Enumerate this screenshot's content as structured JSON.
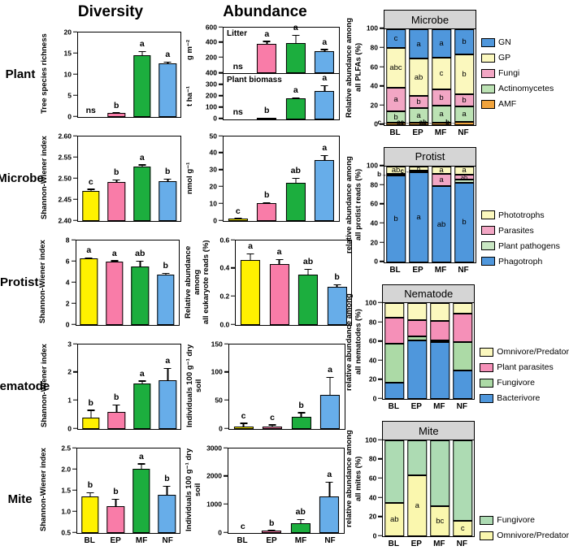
{
  "figure": {
    "col_headers": {
      "diversity": "Diversity",
      "abundance": "Abundance"
    },
    "row_labels": [
      "Plant",
      "Microbe",
      "Protist",
      "Nematode",
      "Mite"
    ]
  },
  "groups": {
    "categories": [
      "BL",
      "EP",
      "MF",
      "NF"
    ],
    "colors": [
      "#FFF100",
      "#F97CA8",
      "#1CAE3E",
      "#67ADE9"
    ]
  },
  "chart_data": [
    {
      "id": "plant-diversity",
      "type": "bar",
      "ylabel": "Tree species richness",
      "ylim": [
        0,
        20
      ],
      "yticks": [
        0,
        5,
        10,
        15,
        20
      ],
      "decimals": 0,
      "categories": [
        "BL",
        "EP",
        "MF",
        "NF"
      ],
      "values": [
        0,
        1.0,
        14.7,
        12.7
      ],
      "errors": [
        0,
        0.12,
        0.9,
        0.4
      ],
      "letters": [
        "ns",
        "b",
        "a",
        "a"
      ],
      "show_x": false
    },
    {
      "id": "plant-litter",
      "type": "bar",
      "inner_title": "Litter",
      "ylabel": "g m⁻²",
      "ylim": [
        0,
        600
      ],
      "yticks": [
        0,
        200,
        400,
        600
      ],
      "decimals": 0,
      "categories": [
        "BL",
        "EP",
        "MF",
        "NF"
      ],
      "values": [
        0,
        390,
        400,
        290
      ],
      "errors": [
        0,
        35,
        105,
        30
      ],
      "letters": [
        "ns",
        "a",
        "a",
        "a"
      ],
      "show_x": false
    },
    {
      "id": "plant-biomass",
      "type": "bar",
      "inner_title": "Plant biomass",
      "ylabel": "t ha⁻¹",
      "ylim": [
        0,
        400
      ],
      "yticks": [
        0,
        100,
        200,
        300,
        400
      ],
      "decimals": 0,
      "categories": [
        "BL",
        "EP",
        "MF",
        "NF"
      ],
      "values": [
        0,
        8,
        180,
        245
      ],
      "errors": [
        0,
        3,
        10,
        55
      ],
      "letters": [
        "ns",
        "b",
        "a",
        "a"
      ],
      "show_x": false
    },
    {
      "id": "microbe-diversity",
      "type": "bar",
      "ylabel": "Shannon-Wiener index",
      "ylim": [
        2.4,
        2.6
      ],
      "yticks": [
        2.4,
        2.45,
        2.5,
        2.55,
        2.6
      ],
      "decimals": 2,
      "categories": [
        "BL",
        "EP",
        "MF",
        "NF"
      ],
      "values": [
        2.472,
        2.493,
        2.528,
        2.494
      ],
      "errors": [
        0.004,
        0.006,
        0.006,
        0.007
      ],
      "letters": [
        "c",
        "b",
        "a",
        "b"
      ],
      "show_x": false
    },
    {
      "id": "microbe-abundance",
      "type": "bar",
      "ylabel": "nmol g⁻¹",
      "ylim": [
        0,
        50
      ],
      "yticks": [
        0,
        10,
        20,
        30,
        40,
        50
      ],
      "decimals": 0,
      "categories": [
        "BL",
        "EP",
        "MF",
        "NF"
      ],
      "values": [
        1.5,
        10.8,
        22.5,
        36
      ],
      "errors": [
        0.3,
        0.5,
        3.2,
        3.0
      ],
      "letters": [
        "c",
        "b",
        "ab",
        "a"
      ],
      "show_x": false
    },
    {
      "id": "protist-diversity",
      "type": "bar",
      "ylabel": "Shannon-Wiener index",
      "ylim": [
        0,
        8
      ],
      "yticks": [
        0,
        2,
        4,
        6,
        8
      ],
      "decimals": 0,
      "categories": [
        "BL",
        "EP",
        "MF",
        "NF"
      ],
      "values": [
        6.3,
        6.0,
        5.55,
        4.75
      ],
      "errors": [
        0.12,
        0.15,
        0.55,
        0.2
      ],
      "letters": [
        "a",
        "a",
        "ab",
        "b"
      ],
      "show_x": false
    },
    {
      "id": "protist-abundance",
      "type": "bar",
      "ylabel": "Relative abundance among\nall eukaryote reads (%)",
      "ylim": [
        0,
        0.6
      ],
      "yticks": [
        0,
        0.2,
        0.4,
        0.6
      ],
      "decimals": 1,
      "categories": [
        "BL",
        "EP",
        "MF",
        "NF"
      ],
      "values": [
        0.46,
        0.43,
        0.36,
        0.27
      ],
      "errors": [
        0.05,
        0.04,
        0.04,
        0.02
      ],
      "letters": [
        "a",
        "a",
        "ab",
        "b"
      ],
      "show_x": false
    },
    {
      "id": "nematode-diversity",
      "type": "bar",
      "ylabel": "Shannon-Wiener index",
      "ylim": [
        0,
        3
      ],
      "yticks": [
        0,
        1,
        2,
        3
      ],
      "decimals": 0,
      "categories": [
        "BL",
        "EP",
        "MF",
        "NF"
      ],
      "values": [
        0.4,
        0.62,
        1.63,
        1.72
      ],
      "errors": [
        0.28,
        0.25,
        0.1,
        0.45
      ],
      "letters": [
        "b",
        "b",
        "a",
        "a"
      ],
      "show_x": false
    },
    {
      "id": "nematode-abundance",
      "type": "bar",
      "ylabel": "Individuals 100 g⁻¹ dry soil",
      "ylim": [
        0,
        150
      ],
      "yticks": [
        0,
        50,
        100,
        150
      ],
      "decimals": 0,
      "categories": [
        "BL",
        "EP",
        "MF",
        "NF"
      ],
      "values": [
        5,
        4,
        21,
        60
      ],
      "errors": [
        6,
        4,
        9,
        33
      ],
      "letters": [
        "c",
        "c",
        "b",
        "a"
      ],
      "show_x": false
    },
    {
      "id": "mite-diversity",
      "type": "bar",
      "ylabel": "Shannon-Wiener index",
      "ylim": [
        0.5,
        2.5
      ],
      "yticks": [
        0.5,
        1.0,
        1.5,
        2.0,
        2.5
      ],
      "decimals": 1,
      "categories": [
        "BL",
        "EP",
        "MF",
        "NF"
      ],
      "values": [
        1.37,
        1.13,
        2.01,
        1.4
      ],
      "errors": [
        0.1,
        0.18,
        0.14,
        0.22
      ],
      "letters": [
        "b",
        "b",
        "a",
        "b"
      ],
      "show_x": true
    },
    {
      "id": "mite-abundance",
      "type": "bar",
      "ylabel": "Individuals 100 g⁻¹ dry soil",
      "ylim": [
        0,
        3000
      ],
      "yticks": [
        0,
        1000,
        2000,
        3000
      ],
      "decimals": 0,
      "categories": [
        "BL",
        "EP",
        "MF",
        "NF"
      ],
      "values": [
        0,
        80,
        340,
        1300
      ],
      "errors": [
        0,
        30,
        160,
        530
      ],
      "letters": [
        "c",
        "b",
        "ab",
        "a"
      ],
      "show_x": true
    },
    {
      "id": "microbe-stacked",
      "type": "stacked-bar",
      "title": "Microbe",
      "ylabel": "Relative abundance among\nall PLFAs (%)",
      "ylim": [
        0,
        100
      ],
      "yticks": [
        0,
        20,
        40,
        60,
        80,
        100
      ],
      "decimals": 0,
      "categories": [
        "BL",
        "EP",
        "MF",
        "NF"
      ],
      "series": [
        {
          "name": "AMF",
          "color": "#F0A33C",
          "values": [
            2,
            2,
            2,
            3
          ],
          "letters": [
            "",
            "",
            "",
            ""
          ]
        },
        {
          "name": "Actinomycetes",
          "color": "#BCE2B4",
          "values": [
            12,
            16,
            18,
            16
          ],
          "letters": [
            "b",
            "a",
            "a",
            "a"
          ]
        },
        {
          "name": "Fungi",
          "color": "#F2A6C4",
          "values": [
            25,
            12,
            17,
            13
          ],
          "letters": [
            "a",
            "b",
            "b",
            "b"
          ]
        },
        {
          "name": "GP",
          "color": "#FBF8BE",
          "values": [
            41,
            39,
            33,
            42
          ],
          "letters": [
            "abc",
            "ab",
            "c",
            "b"
          ]
        },
        {
          "name": "GN",
          "color": "#4F97DC",
          "values": [
            20,
            31,
            30,
            26
          ],
          "letters": [
            "c",
            "a",
            "a",
            "b"
          ]
        }
      ],
      "outer_letters": [
        {
          "cat": 0,
          "text": "c",
          "at": 2.5
        },
        {
          "cat": 1,
          "text": "ac",
          "at": 2.5
        },
        {
          "cat": 2,
          "text": "ab",
          "at": 2.5
        },
        {
          "cat": 3,
          "text": "b",
          "at": 2.5
        }
      ],
      "legend": [
        {
          "label": "GN",
          "color": "#4F97DC"
        },
        {
          "label": "GP",
          "color": "#FBF8BE"
        },
        {
          "label": "Fungi",
          "color": "#F2A6C4"
        },
        {
          "label": "Actinomycetes",
          "color": "#BCE2B4"
        },
        {
          "label": "AMF",
          "color": "#F0A33C"
        }
      ],
      "show_x": true
    },
    {
      "id": "protist-stacked",
      "type": "stacked-bar",
      "title": "Protist",
      "ylabel": "relative abundance among\nall protist reads (%)",
      "ylim": [
        0,
        100
      ],
      "yticks": [
        0,
        20,
        40,
        60,
        80,
        100
      ],
      "decimals": 0,
      "categories": [
        "BL",
        "EP",
        "MF",
        "NF"
      ],
      "series": [
        {
          "name": "Phagotroph",
          "color": "#4F97DC",
          "values": [
            90,
            94,
            79,
            83
          ],
          "letters": [
            "b",
            "a",
            "ab",
            "b"
          ]
        },
        {
          "name": "Plant pathogens",
          "color": "#C9E7C3",
          "values": [
            0,
            0,
            0,
            3
          ],
          "letters": [
            "",
            "",
            "",
            ""
          ]
        },
        {
          "name": "Parasites",
          "color": "#F2A6C4",
          "values": [
            2,
            1.5,
            13,
            5
          ],
          "letters": [
            "",
            "",
            "a",
            "ab"
          ]
        },
        {
          "name": "Phototrophs",
          "color": "#FBF8BE",
          "values": [
            8,
            4.5,
            8,
            9
          ],
          "letters": [
            "ab",
            "b",
            "a",
            "a"
          ]
        }
      ],
      "outer_letters": [
        {
          "cat": 0,
          "text": "b",
          "at": 91
        },
        {
          "cat": 1,
          "text": "c",
          "at": 95
        }
      ],
      "legend": [
        {
          "label": "Phototrophs",
          "color": "#FBF8BE"
        },
        {
          "label": "Parasites",
          "color": "#F2A6C4"
        },
        {
          "label": "Plant pathogens",
          "color": "#C9E7C3"
        },
        {
          "label": "Phagotroph",
          "color": "#4F97DC"
        }
      ],
      "show_x": true
    },
    {
      "id": "nematode-stacked",
      "type": "stacked-bar",
      "title": "Nematode",
      "ylabel": "relative abundance among\nall nematodes (%)",
      "ylim": [
        0,
        100
      ],
      "yticks": [
        0,
        20,
        40,
        60,
        80,
        100
      ],
      "decimals": 0,
      "categories": [
        "BL",
        "EP",
        "MF",
        "NF"
      ],
      "series": [
        {
          "name": "Bacterivore",
          "color": "#4F97DC",
          "values": [
            17,
            61,
            60,
            30
          ],
          "letters": [
            "",
            "",
            "",
            ""
          ]
        },
        {
          "name": "Fungivore",
          "color": "#ACDAA6",
          "values": [
            41,
            5,
            1,
            30
          ],
          "letters": [
            "",
            "",
            "",
            ""
          ]
        },
        {
          "name": "Plant parasites",
          "color": "#F590B8",
          "values": [
            27,
            17,
            21,
            29
          ],
          "letters": [
            "",
            "",
            "",
            ""
          ]
        },
        {
          "name": "Omnivore/Predator",
          "color": "#FBF8BE",
          "values": [
            15,
            17,
            18,
            11
          ],
          "letters": [
            "",
            "",
            "",
            ""
          ]
        }
      ],
      "outer_letters": [],
      "legend": [
        {
          "label": "Omnivore/Predator",
          "color": "#FBF8BE"
        },
        {
          "label": "Plant parasites",
          "color": "#F590B8"
        },
        {
          "label": "Fungivore",
          "color": "#ACDAA6"
        },
        {
          "label": "Bacterivore",
          "color": "#4F97DC"
        }
      ],
      "show_x": true
    },
    {
      "id": "mite-stacked",
      "type": "stacked-bar",
      "title": "Mite",
      "ylabel": "relative abundance among\nall mites (%)",
      "ylim": [
        0,
        100
      ],
      "yticks": [
        0,
        20,
        40,
        60,
        80,
        100
      ],
      "decimals": 0,
      "categories": [
        "BL",
        "EP",
        "MF",
        "NF"
      ],
      "series": [
        {
          "name": "Omnivore/Predator",
          "color": "#FAF7AE",
          "values": [
            35,
            64,
            32,
            16
          ],
          "letters": [
            "ab",
            "a",
            "bc",
            "c"
          ]
        },
        {
          "name": "Fungivore",
          "color": "#ADDBB3",
          "values": [
            65,
            36,
            68,
            84
          ],
          "letters": [
            "",
            "",
            "",
            ""
          ]
        }
      ],
      "outer_letters": [],
      "legend": [
        {
          "label": "Fungivore",
          "color": "#ADDBB3"
        },
        {
          "label": "Omnivore/Predator",
          "color": "#FAF7AE"
        }
      ],
      "show_x": true
    }
  ]
}
